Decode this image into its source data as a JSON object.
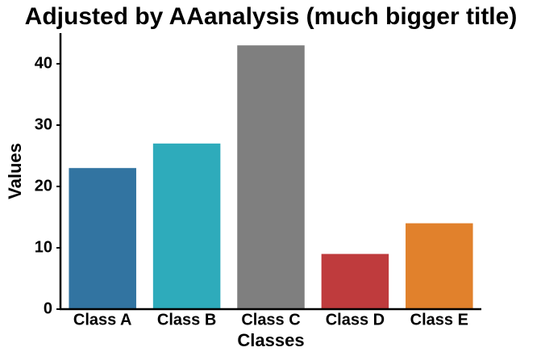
{
  "chart_data": {
    "type": "bar",
    "title": "Adjusted by AAanalysis (much bigger title)",
    "x_label": "Classes",
    "y_label": "Values",
    "categories": [
      "Class A",
      "Class B",
      "Class C",
      "Class D",
      "Class E"
    ],
    "values": [
      23,
      27,
      43,
      9,
      14
    ],
    "colors": [
      "#3274a1",
      "#2eabbb",
      "#7f7f7f",
      "#bf3b3d",
      "#e1812c"
    ],
    "ylim": [
      0,
      45
    ],
    "yticks": [
      0,
      10,
      20,
      30,
      40
    ],
    "grid": false
  }
}
